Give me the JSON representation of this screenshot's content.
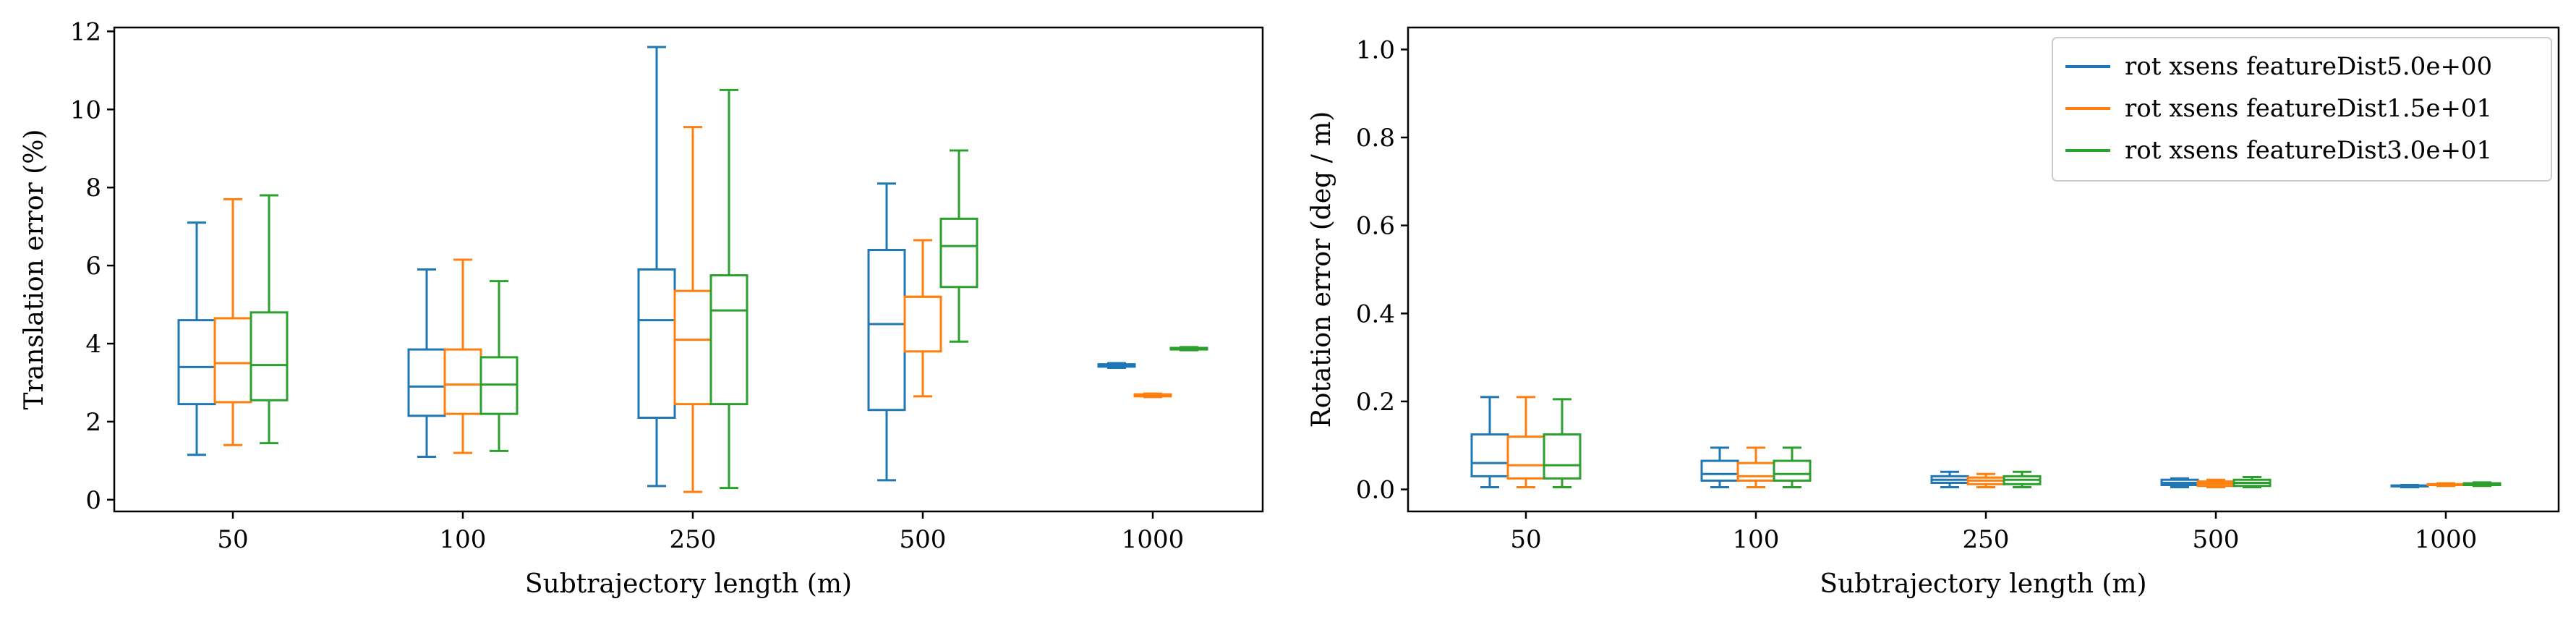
{
  "chart_data": [
    {
      "type": "box",
      "xlabel": "Subtrajectory length (m)",
      "ylabel": "Translation error (%)",
      "categories": [
        "50",
        "100",
        "250",
        "500",
        "1000"
      ],
      "ylim": [
        -0.3,
        12.1
      ],
      "yticks": [
        0,
        2,
        4,
        6,
        8,
        10,
        12
      ],
      "grid": false,
      "series": [
        {
          "color": "#1f77b4",
          "boxes": [
            {
              "whislo": 1.15,
              "q1": 2.45,
              "med": 3.4,
              "q3": 4.6,
              "whishi": 7.1
            },
            {
              "whislo": 1.1,
              "q1": 2.15,
              "med": 2.9,
              "q3": 3.85,
              "whishi": 5.9
            },
            {
              "whislo": 0.35,
              "q1": 2.1,
              "med": 4.6,
              "q3": 5.9,
              "whishi": 11.6
            },
            {
              "whislo": 0.5,
              "q1": 2.3,
              "med": 4.5,
              "q3": 6.4,
              "whishi": 8.1
            },
            {
              "whislo": 3.38,
              "q1": 3.41,
              "med": 3.44,
              "q3": 3.47,
              "whishi": 3.5
            }
          ]
        },
        {
          "color": "#ff7f0e",
          "boxes": [
            {
              "whislo": 1.4,
              "q1": 2.5,
              "med": 3.5,
              "q3": 4.65,
              "whishi": 7.7
            },
            {
              "whislo": 1.2,
              "q1": 2.2,
              "med": 2.95,
              "q3": 3.85,
              "whishi": 6.15
            },
            {
              "whislo": 0.2,
              "q1": 2.45,
              "med": 4.1,
              "q3": 5.35,
              "whishi": 9.55
            },
            {
              "whislo": 2.65,
              "q1": 3.8,
              "med": 5.2,
              "q3": 5.2,
              "whishi": 6.65
            },
            {
              "whislo": 2.63,
              "q1": 2.65,
              "med": 2.68,
              "q3": 2.7,
              "whishi": 2.72
            }
          ]
        },
        {
          "color": "#2ca02c",
          "boxes": [
            {
              "whislo": 1.45,
              "q1": 2.55,
              "med": 3.45,
              "q3": 4.8,
              "whishi": 7.8
            },
            {
              "whislo": 1.25,
              "q1": 2.2,
              "med": 2.95,
              "q3": 3.65,
              "whishi": 5.6
            },
            {
              "whislo": 0.3,
              "q1": 2.45,
              "med": 4.85,
              "q3": 5.75,
              "whishi": 10.5
            },
            {
              "whislo": 4.05,
              "q1": 5.45,
              "med": 6.5,
              "q3": 7.2,
              "whishi": 8.95
            },
            {
              "whislo": 3.83,
              "q1": 3.85,
              "med": 3.87,
              "q3": 3.89,
              "whishi": 3.91
            }
          ]
        }
      ]
    },
    {
      "type": "box",
      "xlabel": "Subtrajectory length (m)",
      "ylabel": "Rotation error (deg / m)",
      "categories": [
        "50",
        "100",
        "250",
        "500",
        "1000"
      ],
      "ylim": [
        -0.05,
        1.05
      ],
      "yticks": [
        "0.0",
        "0.2",
        "0.4",
        "0.6",
        "0.8",
        "1.0"
      ],
      "grid": false,
      "legend_position": "top-right",
      "series": [
        {
          "name": "rot xsens featureDist5.0e+00",
          "color": "#1f77b4",
          "boxes": [
            {
              "whislo": 0.005,
              "q1": 0.03,
              "med": 0.06,
              "q3": 0.125,
              "whishi": 0.21
            },
            {
              "whislo": 0.005,
              "q1": 0.02,
              "med": 0.035,
              "q3": 0.065,
              "whishi": 0.095
            },
            {
              "whislo": 0.005,
              "q1": 0.015,
              "med": 0.022,
              "q3": 0.03,
              "whishi": 0.04
            },
            {
              "whislo": 0.005,
              "q1": 0.01,
              "med": 0.015,
              "q3": 0.022,
              "whishi": 0.025
            },
            {
              "whislo": 0.005,
              "q1": 0.007,
              "med": 0.008,
              "q3": 0.009,
              "whishi": 0.01
            }
          ]
        },
        {
          "name": "rot xsens featureDist1.5e+01",
          "color": "#ff7f0e",
          "boxes": [
            {
              "whislo": 0.005,
              "q1": 0.025,
              "med": 0.055,
              "q3": 0.12,
              "whishi": 0.21
            },
            {
              "whislo": 0.005,
              "q1": 0.02,
              "med": 0.03,
              "q3": 0.06,
              "whishi": 0.095
            },
            {
              "whislo": 0.005,
              "q1": 0.012,
              "med": 0.02,
              "q3": 0.027,
              "whishi": 0.035
            },
            {
              "whislo": 0.005,
              "q1": 0.008,
              "med": 0.013,
              "q3": 0.018,
              "whishi": 0.022
            },
            {
              "whislo": 0.008,
              "q1": 0.01,
              "med": 0.011,
              "q3": 0.012,
              "whishi": 0.014
            }
          ]
        },
        {
          "name": "rot xsens featureDist3.0e+01",
          "color": "#2ca02c",
          "boxes": [
            {
              "whislo": 0.005,
              "q1": 0.025,
              "med": 0.055,
              "q3": 0.125,
              "whishi": 0.205
            },
            {
              "whislo": 0.005,
              "q1": 0.02,
              "med": 0.035,
              "q3": 0.065,
              "whishi": 0.095
            },
            {
              "whislo": 0.005,
              "q1": 0.012,
              "med": 0.022,
              "q3": 0.03,
              "whishi": 0.04
            },
            {
              "whislo": 0.005,
              "q1": 0.008,
              "med": 0.015,
              "q3": 0.022,
              "whishi": 0.028
            },
            {
              "whislo": 0.008,
              "q1": 0.01,
              "med": 0.012,
              "q3": 0.014,
              "whishi": 0.016
            }
          ]
        }
      ]
    }
  ]
}
